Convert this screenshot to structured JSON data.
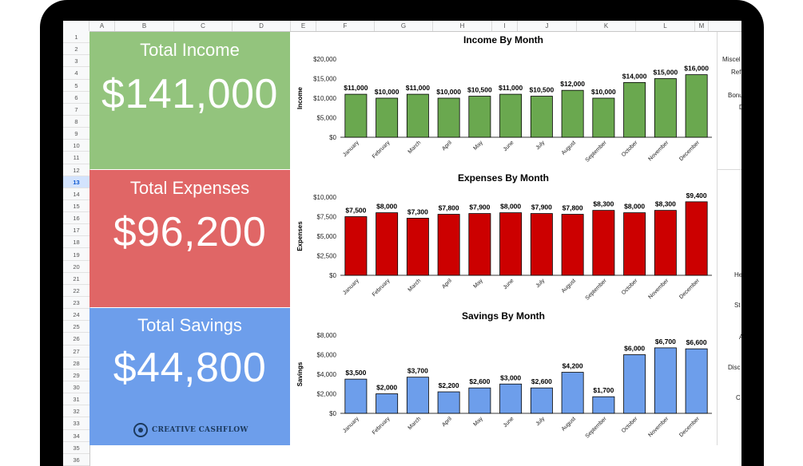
{
  "sheet": {
    "columns": [
      "A",
      "B",
      "C",
      "D",
      "E",
      "F",
      "G",
      "H",
      "I",
      "J",
      "K",
      "L",
      "M"
    ],
    "rows": [
      "1",
      "2",
      "3",
      "4",
      "5",
      "6",
      "7",
      "8",
      "9",
      "10",
      "11",
      "12",
      "13",
      "14",
      "15",
      "16",
      "17",
      "18",
      "19",
      "20",
      "21",
      "22",
      "23",
      "24",
      "25",
      "26",
      "27",
      "28",
      "29",
      "30",
      "31",
      "32",
      "33",
      "34",
      "35",
      "36"
    ],
    "selected_row": "13"
  },
  "cards": {
    "income": {
      "label": "Total Income",
      "value": "$141,000",
      "color": "#93c47d"
    },
    "expenses": {
      "label": "Total Expenses",
      "value": "$96,200",
      "color": "#e06666"
    },
    "savings": {
      "label": "Total Savings",
      "value": "$44,800",
      "color": "#6d9eeb"
    }
  },
  "right_panel": {
    "labels": [
      "Miscel",
      "Ref",
      "Bonu",
      "D",
      "He",
      "St",
      "A",
      "Disc",
      "C"
    ]
  },
  "logo": {
    "text": "CREATIVE CASHFLOW"
  },
  "chart_data": [
    {
      "type": "bar",
      "title": "Income By Month",
      "xlabel": "",
      "ylabel": "Income",
      "categories": [
        "January",
        "February",
        "March",
        "April",
        "May",
        "June",
        "July",
        "August",
        "September",
        "October",
        "November",
        "December"
      ],
      "values": [
        11000,
        10000,
        11000,
        10000,
        10500,
        11000,
        10500,
        12000,
        10000,
        14000,
        15000,
        16000
      ],
      "data_labels": [
        "$11,000",
        "$10,000",
        "$11,000",
        "$10,000",
        "$10,500",
        "$11,000",
        "$10,500",
        "$12,000",
        "$10,000",
        "$14,000",
        "$15,000",
        "$16,000"
      ],
      "ylim": [
        0,
        20000
      ],
      "yticks": [
        "$0",
        "$5,000",
        "$10,000",
        "$15,000",
        "$20,000"
      ],
      "color": "#6aa84f",
      "grid": false
    },
    {
      "type": "bar",
      "title": "Expenses By Month",
      "xlabel": "",
      "ylabel": "Expenses",
      "categories": [
        "January",
        "February",
        "March",
        "April",
        "May",
        "June",
        "July",
        "August",
        "September",
        "October",
        "November",
        "December"
      ],
      "values": [
        7500,
        8000,
        7300,
        7800,
        7900,
        8000,
        7900,
        7800,
        8300,
        8000,
        8300,
        9400
      ],
      "data_labels": [
        "$7,500",
        "$8,000",
        "$7,300",
        "$7,800",
        "$7,900",
        "$8,000",
        "$7,900",
        "$7,800",
        "$8,300",
        "$8,000",
        "$8,300",
        "$9,400"
      ],
      "ylim": [
        0,
        10000
      ],
      "yticks": [
        "$0",
        "$2,500",
        "$5,000",
        "$7,500",
        "$10,000"
      ],
      "color": "#cc0000",
      "grid": false
    },
    {
      "type": "bar",
      "title": "Savings By Month",
      "xlabel": "",
      "ylabel": "Savings",
      "categories": [
        "January",
        "February",
        "March",
        "April",
        "May",
        "June",
        "July",
        "August",
        "September",
        "October",
        "November",
        "December"
      ],
      "values": [
        3500,
        2000,
        3700,
        2200,
        2600,
        3000,
        2600,
        4200,
        1700,
        6000,
        6700,
        6600
      ],
      "data_labels": [
        "$3,500",
        "$2,000",
        "$3,700",
        "$2,200",
        "$2,600",
        "$3,000",
        "$2,600",
        "$4,200",
        "$1,700",
        "$6,000",
        "$6,700",
        "$6,600"
      ],
      "ylim": [
        0,
        8000
      ],
      "yticks": [
        "$0",
        "$2,000",
        "$4,000",
        "$6,000",
        "$8,000"
      ],
      "color": "#6d9eeb",
      "grid": false
    }
  ]
}
